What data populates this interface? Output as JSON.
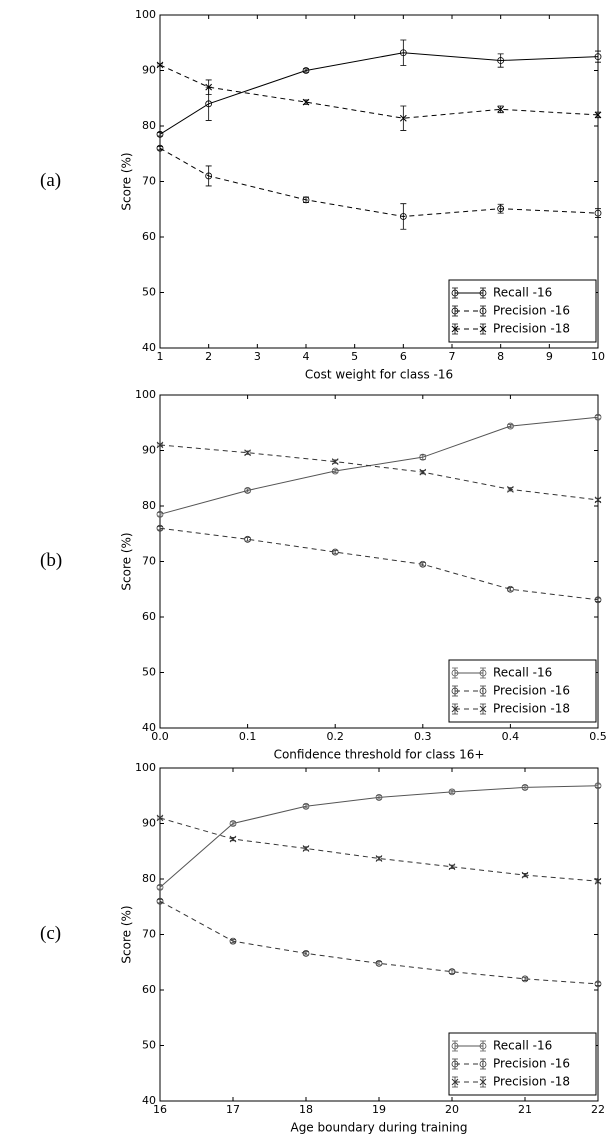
{
  "chart_data": [
    {
      "type": "line",
      "panel_label": "(a)",
      "xlabel": "Cost weight for class -16",
      "ylabel": "Score (%)",
      "x": [
        1,
        2,
        4,
        6,
        8,
        10
      ],
      "xlim": [
        1,
        10
      ],
      "xticks": [
        1,
        2,
        3,
        4,
        5,
        6,
        7,
        8,
        9,
        10
      ],
      "ylim": [
        40,
        100
      ],
      "yticks": [
        40,
        50,
        60,
        70,
        80,
        90,
        100
      ],
      "grid": false,
      "legend": "lower right",
      "series": [
        {
          "name": "Recall -16",
          "color": "#000000",
          "dashed": false,
          "marker": "o",
          "values": [
            78.5,
            84,
            90,
            93.2,
            91.8,
            92.5
          ],
          "errors": [
            0.3,
            3,
            0.3,
            2.3,
            1.2,
            1
          ]
        },
        {
          "name": "Precision -16",
          "color": "#000000",
          "dashed": true,
          "marker": "o",
          "values": [
            76,
            71,
            66.7,
            63.7,
            65.1,
            64.3
          ],
          "errors": [
            0.3,
            1.8,
            0.5,
            2.3,
            0.8,
            0.8
          ]
        },
        {
          "name": "Precision -18",
          "color": "#000000",
          "dashed": true,
          "marker": "x",
          "values": [
            91,
            87,
            84.3,
            81.4,
            83,
            82
          ],
          "errors": [
            0.2,
            1.3,
            0.4,
            2.2,
            0.6,
            0.5
          ]
        }
      ]
    },
    {
      "type": "line",
      "panel_label": "(b)",
      "xlabel": "Confidence threshold for class 16+",
      "ylabel": "Score (%)",
      "x": [
        0,
        0.1,
        0.2,
        0.3,
        0.4,
        0.5
      ],
      "xlim": [
        0,
        0.5
      ],
      "xticks": [
        {
          "value": 0,
          "label": "0.0"
        },
        0.1,
        0.2,
        0.3,
        0.4,
        {
          "value": 0.5,
          "label": "0.5"
        }
      ],
      "ylim": [
        40,
        100
      ],
      "yticks": [
        40,
        50,
        60,
        70,
        80,
        90,
        100
      ],
      "grid": false,
      "legend": "lower right",
      "series": [
        {
          "name": "Recall -16",
          "color": "#555555",
          "dashed": false,
          "marker": "o",
          "values": [
            78.5,
            82.8,
            86.3,
            88.8,
            94.4,
            96
          ],
          "errors": [
            0.3,
            0.3,
            0.3,
            0.4,
            0.3,
            0.3
          ]
        },
        {
          "name": "Precision -16",
          "color": "#333333",
          "dashed": true,
          "marker": "o",
          "values": [
            76,
            74,
            71.7,
            69.5,
            65,
            63.1
          ],
          "errors": [
            0.3,
            0.3,
            0.3,
            0.3,
            0.3,
            0.3
          ]
        },
        {
          "name": "Precision -18",
          "color": "#333333",
          "dashed": true,
          "marker": "x",
          "values": [
            91,
            89.6,
            88,
            86.1,
            83,
            81.1
          ],
          "errors": [
            0.2,
            0.3,
            0.3,
            0.3,
            0.3,
            0.3
          ]
        }
      ]
    },
    {
      "type": "line",
      "panel_label": "(c)",
      "xlabel": "Age boundary during training",
      "ylabel": "Score (%)",
      "x": [
        16,
        17,
        18,
        19,
        20,
        21,
        22
      ],
      "xlim": [
        16,
        22
      ],
      "xticks": [
        16,
        17,
        18,
        19,
        20,
        21,
        22
      ],
      "ylim": [
        40,
        100
      ],
      "yticks": [
        40,
        50,
        60,
        70,
        80,
        90,
        100
      ],
      "grid": false,
      "legend": "lower right",
      "series": [
        {
          "name": "Recall -16",
          "color": "#555555",
          "dashed": false,
          "marker": "o",
          "values": [
            78.5,
            90,
            93.1,
            94.7,
            95.7,
            96.5,
            96.8
          ],
          "errors": [
            0.3,
            0.3,
            0.3,
            0.3,
            0.3,
            0.3,
            0.3
          ]
        },
        {
          "name": "Precision -16",
          "color": "#333333",
          "dashed": true,
          "marker": "o",
          "values": [
            76,
            68.8,
            66.6,
            64.8,
            63.3,
            62,
            61.1
          ],
          "errors": [
            0.3,
            0.3,
            0.3,
            0.3,
            0.3,
            0.3,
            0.3
          ]
        },
        {
          "name": "Precision -18",
          "color": "#333333",
          "dashed": true,
          "marker": "x",
          "values": [
            91,
            87.2,
            85.5,
            83.7,
            82.2,
            80.7,
            79.6
          ],
          "errors": [
            0.2,
            0.3,
            0.3,
            0.3,
            0.3,
            0.3,
            0.3
          ]
        }
      ]
    }
  ]
}
